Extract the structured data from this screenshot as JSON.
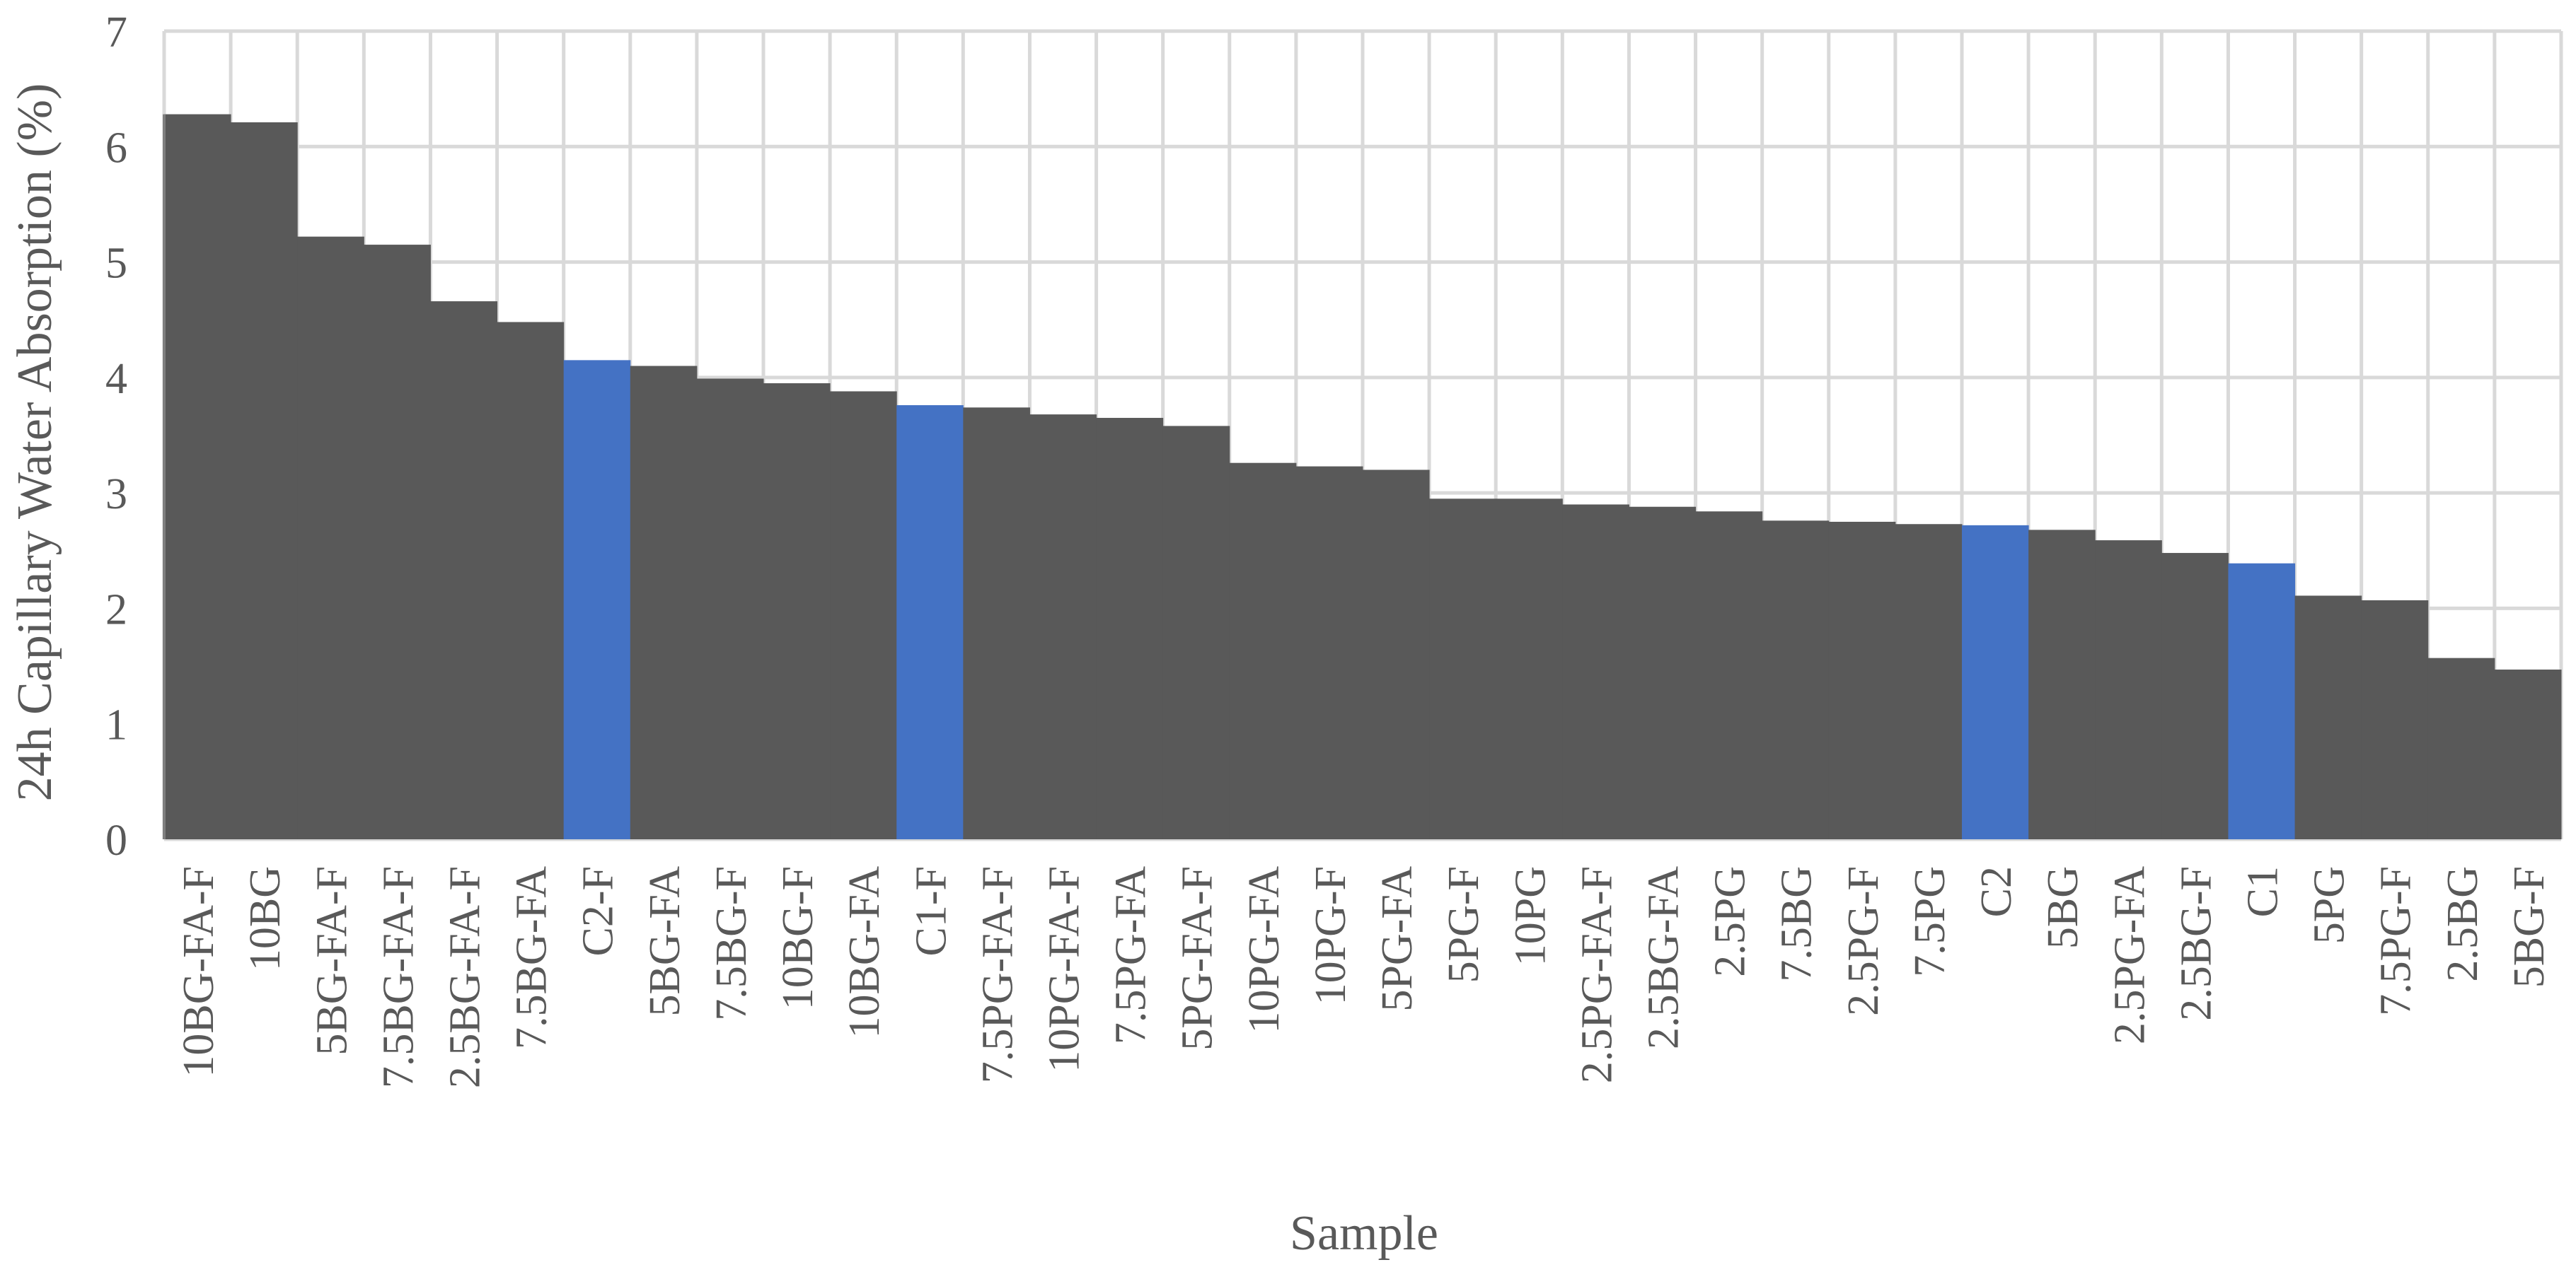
{
  "chart_data": {
    "type": "bar",
    "title": "",
    "xlabel": "Sample",
    "ylabel": "24h Capillary Water Absorption (%)",
    "ylim": [
      0,
      7
    ],
    "yticks": [
      "0",
      "1",
      "2",
      "3",
      "4",
      "5",
      "6",
      "7"
    ],
    "grid": true,
    "gridlines": "major horizontal and vertical",
    "legend": "none",
    "colors": {
      "default_bar": "#595959",
      "control_bar": "#4472C4",
      "grid": "#D9D9D9",
      "axis_text": "#595959"
    },
    "categories": [
      "10BG-FA-F",
      "10BG",
      "5BG-FA-F",
      "7.5BG-FA-F",
      "2.5BG-FA-F",
      "7.5BG-FA",
      "C2-F",
      "5BG-FA",
      "7.5BG-F",
      "10BG-F",
      "10BG-FA",
      "C1-F",
      "7.5PG-FA-F",
      "10PG-FA-F",
      "7.5PG-FA",
      "5PG-FA-F",
      "10PG-FA",
      "10PG-F",
      "5PG-FA",
      "5PG-F",
      "10PG",
      "2.5PG-FA-F",
      "2.5BG-FA",
      "2.5PG",
      "7.5BG",
      "2.5PG-F",
      "7.5PG",
      "C2",
      "5BG",
      "2.5PG-FA",
      "2.5BG-F",
      "C1",
      "5PG",
      "7.5PG-F",
      "2.5BG",
      "5BG-F"
    ],
    "values": [
      6.28,
      6.21,
      5.22,
      5.15,
      4.66,
      4.48,
      4.15,
      4.1,
      3.99,
      3.95,
      3.88,
      3.76,
      3.74,
      3.68,
      3.65,
      3.58,
      3.26,
      3.23,
      3.2,
      2.95,
      2.95,
      2.9,
      2.88,
      2.84,
      2.76,
      2.75,
      2.73,
      2.72,
      2.68,
      2.59,
      2.48,
      2.39,
      2.11,
      2.07,
      1.57,
      1.47
    ],
    "highlighted": [
      "C2-F",
      "C1-F",
      "C2",
      "C1"
    ]
  }
}
